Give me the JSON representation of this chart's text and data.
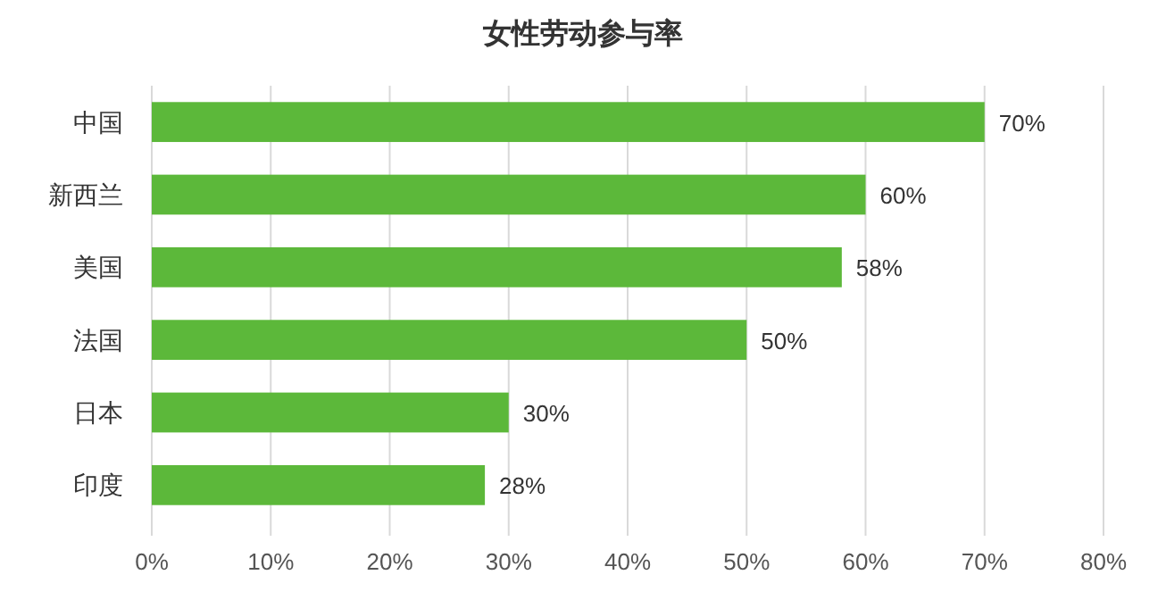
{
  "chart_data": {
    "type": "bar",
    "orientation": "horizontal",
    "title": "女性劳动参与率",
    "categories": [
      "中国",
      "新西兰",
      "美国",
      "法国",
      "日本",
      "印度"
    ],
    "values": [
      70,
      60,
      58,
      50,
      30,
      28
    ],
    "value_labels": [
      "70%",
      "60%",
      "58%",
      "50%",
      "30%",
      "28%"
    ],
    "color": "#5cb83a",
    "xlim": [
      0,
      80
    ],
    "xticks": [
      {
        "value": 0,
        "label": "0%"
      },
      {
        "value": 10,
        "label": "10%"
      },
      {
        "value": 20,
        "label": "20%"
      },
      {
        "value": 30,
        "label": "30%"
      },
      {
        "value": 40,
        "label": "40%"
      },
      {
        "value": 50,
        "label": "50%"
      },
      {
        "value": 60,
        "label": "60%"
      },
      {
        "value": 70,
        "label": "70%"
      },
      {
        "value": 80,
        "label": "80%"
      }
    ],
    "grid": "x"
  }
}
